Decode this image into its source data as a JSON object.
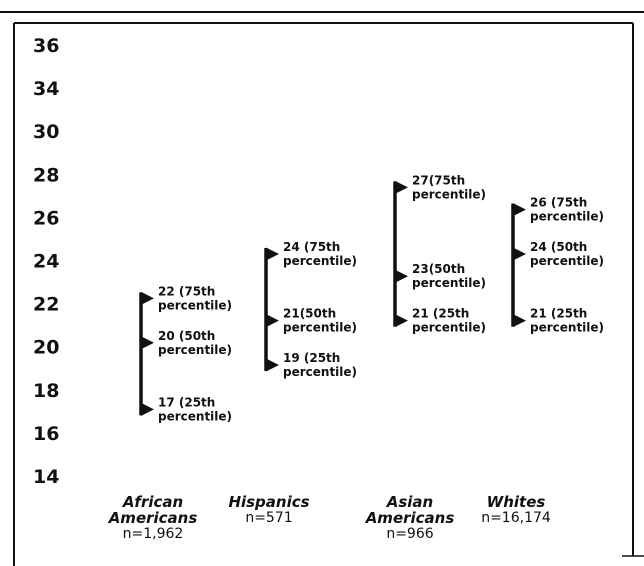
{
  "chart_data": {
    "type": "range",
    "y_ticks": [
      14,
      16,
      18,
      20,
      22,
      24,
      26,
      28,
      30,
      34,
      36
    ],
    "groups": [
      {
        "name_lines": [
          "African",
          "Americans"
        ],
        "n": "n=1,962",
        "p25": 17,
        "p50": 20,
        "p75": 22,
        "labels": {
          "p75": [
            "22 (75th",
            "percentile)"
          ],
          "p50": [
            "20 (50th",
            "percentile)"
          ],
          "p25": [
            "17 (25th",
            "percentile)"
          ]
        }
      },
      {
        "name_lines": [
          "Hispanics"
        ],
        "n": "n=571",
        "p25": 19,
        "p50": 21,
        "p75": 24,
        "labels": {
          "p75": [
            "24 (75th",
            "percentile)"
          ],
          "p50": [
            "21(50th",
            "percentile)"
          ],
          "p25": [
            "19 (25th",
            "percentile)"
          ]
        }
      },
      {
        "name_lines": [
          "Asian",
          "Americans"
        ],
        "n": "n=966",
        "p25": 21,
        "p50": 23,
        "p75": 27,
        "labels": {
          "p75": [
            "27(75th",
            "percentile)"
          ],
          "p50": [
            "23(50th",
            "percentile)"
          ],
          "p25": [
            "21 (25th",
            "percentile)"
          ]
        }
      },
      {
        "name_lines": [
          "Whites"
        ],
        "n": "n=16,174",
        "p25": 21,
        "p50": 24,
        "p75": 26,
        "labels": {
          "p75": [
            "26 (75th",
            "percentile)"
          ],
          "p50": [
            "24 (50th",
            "percentile)"
          ],
          "p25": [
            "21 (25th",
            "percentile)"
          ]
        }
      }
    ]
  }
}
